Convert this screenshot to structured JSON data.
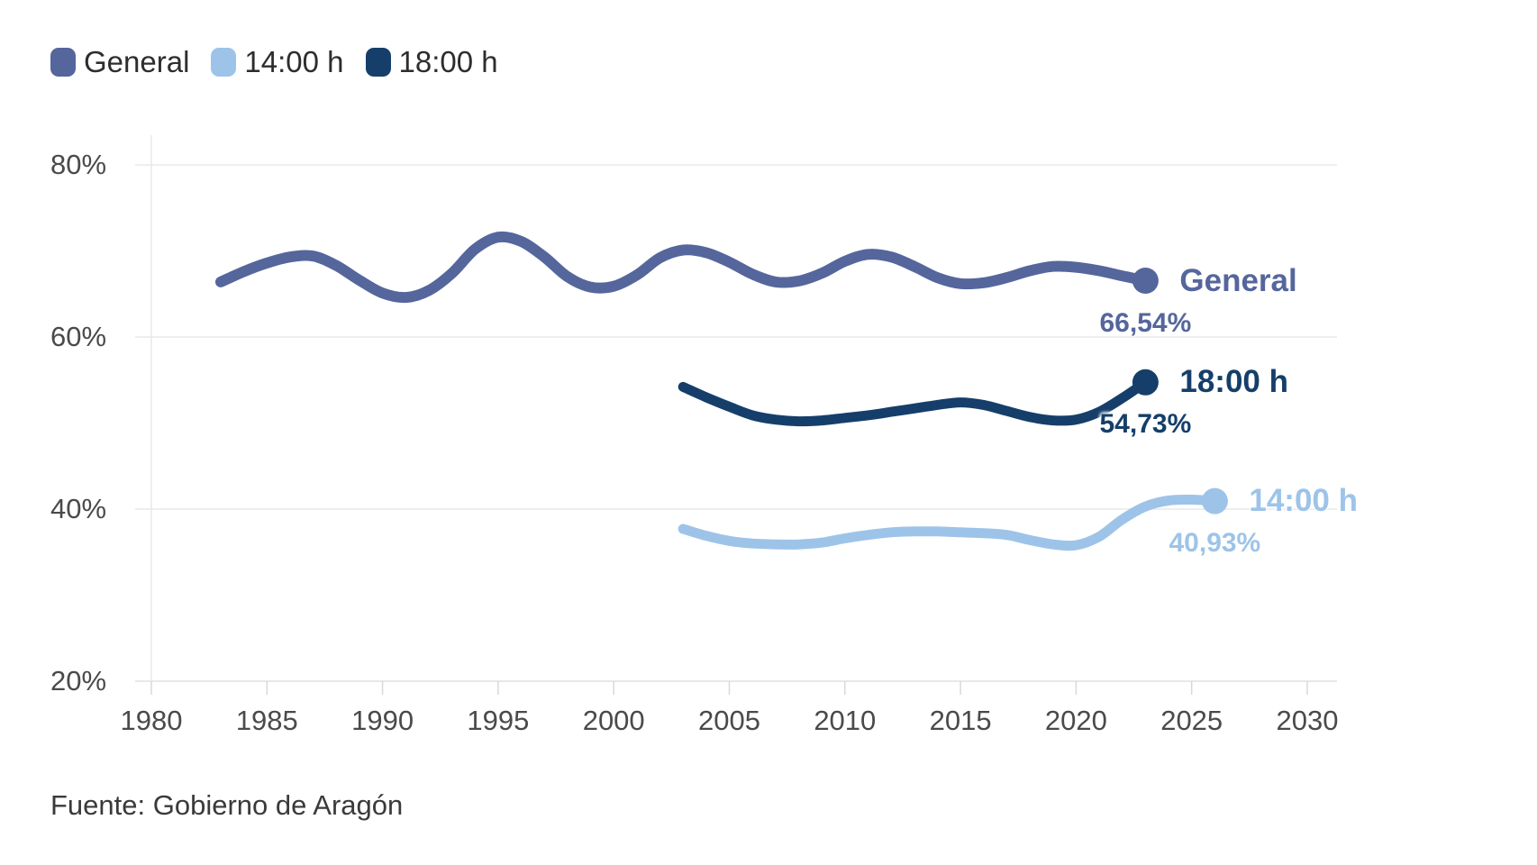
{
  "legend": {
    "items": [
      {
        "label": "General",
        "color": "#55669c"
      },
      {
        "label": "14:00 h",
        "color": "#9dc4e8"
      },
      {
        "label": "18:00 h",
        "color": "#153f6a"
      }
    ]
  },
  "source": {
    "text": "Fuente: Gobierno de Aragón"
  },
  "chart_data": {
    "type": "line",
    "title": "",
    "xlabel": "",
    "ylabel": "",
    "grid": "horizontal",
    "legend_position": "top-left",
    "x_axis": {
      "ticks": [
        1980,
        1985,
        1990,
        1995,
        2000,
        2005,
        2010,
        2015,
        2020,
        2025,
        2030
      ],
      "range": [
        1979.3,
        2031.3
      ]
    },
    "y_axis": {
      "ticks": [
        20,
        40,
        60,
        80
      ],
      "unit": "%",
      "range": [
        20,
        80
      ]
    },
    "series": [
      {
        "name": "General",
        "color": "#55669c",
        "end_label": "General",
        "end_value": 66.54,
        "end_value_label": "66,54%",
        "points": [
          [
            1983,
            66.4
          ],
          [
            1984,
            67.6
          ],
          [
            1985,
            68.6
          ],
          [
            1986,
            69.3
          ],
          [
            1987,
            69.4
          ],
          [
            1988,
            68.3
          ],
          [
            1989,
            66.6
          ],
          [
            1990,
            65.1
          ],
          [
            1991,
            64.6
          ],
          [
            1992,
            65.4
          ],
          [
            1993,
            67.4
          ],
          [
            1994,
            70.2
          ],
          [
            1995,
            71.6
          ],
          [
            1996,
            71.1
          ],
          [
            1997,
            69.3
          ],
          [
            1998,
            67.0
          ],
          [
            1999,
            65.8
          ],
          [
            2000,
            65.9
          ],
          [
            2001,
            67.2
          ],
          [
            2002,
            69.2
          ],
          [
            2003,
            70.1
          ],
          [
            2004,
            69.8
          ],
          [
            2005,
            68.7
          ],
          [
            2006,
            67.3
          ],
          [
            2007,
            66.4
          ],
          [
            2008,
            66.5
          ],
          [
            2009,
            67.4
          ],
          [
            2010,
            68.8
          ],
          [
            2011,
            69.6
          ],
          [
            2012,
            69.3
          ],
          [
            2013,
            68.2
          ],
          [
            2014,
            66.9
          ],
          [
            2015,
            66.2
          ],
          [
            2016,
            66.3
          ],
          [
            2017,
            66.9
          ],
          [
            2018,
            67.7
          ],
          [
            2019,
            68.2
          ],
          [
            2020,
            68.1
          ],
          [
            2021,
            67.7
          ],
          [
            2022,
            67.1
          ],
          [
            2023,
            66.54
          ]
        ]
      },
      {
        "name": "14:00 h",
        "color": "#9dc4e8",
        "end_label": "14:00 h",
        "end_value": 40.93,
        "end_value_label": "40,93%",
        "points": [
          [
            2003,
            37.7
          ],
          [
            2004,
            36.9
          ],
          [
            2005,
            36.3
          ],
          [
            2006,
            36.0
          ],
          [
            2007,
            35.9
          ],
          [
            2008,
            35.9
          ],
          [
            2009,
            36.1
          ],
          [
            2010,
            36.6
          ],
          [
            2011,
            37.0
          ],
          [
            2012,
            37.3
          ],
          [
            2013,
            37.4
          ],
          [
            2014,
            37.4
          ],
          [
            2015,
            37.3
          ],
          [
            2016,
            37.2
          ],
          [
            2017,
            37.0
          ],
          [
            2018,
            36.4
          ],
          [
            2019,
            35.9
          ],
          [
            2020,
            35.8
          ],
          [
            2021,
            36.8
          ],
          [
            2022,
            38.8
          ],
          [
            2023,
            40.3
          ],
          [
            2024,
            41.0
          ],
          [
            2025,
            41.1
          ],
          [
            2026,
            40.93
          ]
        ]
      },
      {
        "name": "18:00 h",
        "color": "#153f6a",
        "end_label": "18:00 h",
        "end_value": 54.73,
        "end_value_label": "54,73%",
        "points": [
          [
            2003,
            54.2
          ],
          [
            2004,
            53.0
          ],
          [
            2005,
            51.9
          ],
          [
            2006,
            50.9
          ],
          [
            2007,
            50.4
          ],
          [
            2008,
            50.2
          ],
          [
            2009,
            50.3
          ],
          [
            2010,
            50.6
          ],
          [
            2011,
            50.9
          ],
          [
            2012,
            51.3
          ],
          [
            2013,
            51.7
          ],
          [
            2014,
            52.1
          ],
          [
            2015,
            52.4
          ],
          [
            2016,
            52.1
          ],
          [
            2017,
            51.4
          ],
          [
            2018,
            50.7
          ],
          [
            2019,
            50.3
          ],
          [
            2020,
            50.4
          ],
          [
            2021,
            51.3
          ],
          [
            2022,
            52.9
          ],
          [
            2023,
            54.73
          ]
        ]
      }
    ]
  }
}
